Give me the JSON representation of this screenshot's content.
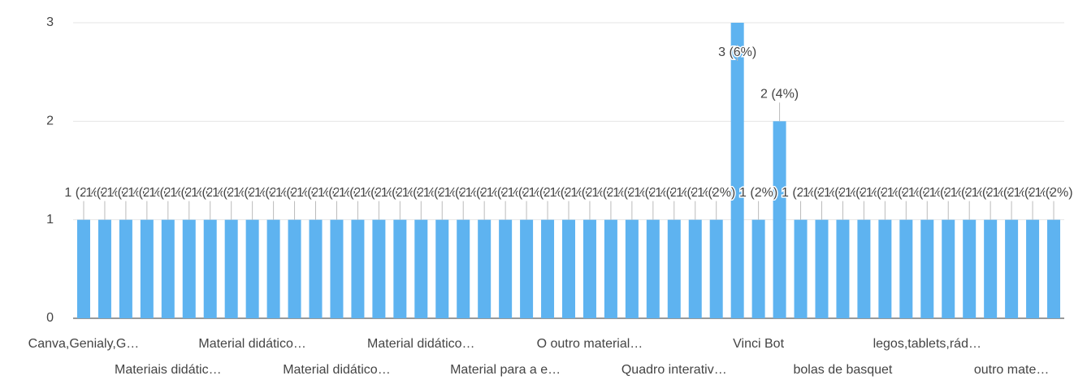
{
  "chart_data": {
    "type": "bar",
    "categories": [
      "Canva,Genialy,G…",
      null,
      null,
      null,
      "Materiais didátic…",
      null,
      null,
      null,
      "Material didático…",
      null,
      null,
      null,
      "Material didático…",
      null,
      null,
      null,
      "Material didático…",
      null,
      null,
      null,
      "Material para a e…",
      null,
      null,
      null,
      "O outro material…",
      null,
      null,
      null,
      "Quadro interativ…",
      null,
      null,
      null,
      "Vinci Bot",
      null,
      null,
      null,
      "bolas de basquet",
      null,
      null,
      null,
      "legos,tablets,rád…",
      null,
      null,
      null,
      "outro mate…",
      null,
      null
    ],
    "values": [
      1,
      1,
      1,
      1,
      1,
      1,
      1,
      1,
      1,
      1,
      1,
      1,
      1,
      1,
      1,
      1,
      1,
      1,
      1,
      1,
      1,
      1,
      1,
      1,
      1,
      1,
      1,
      1,
      1,
      1,
      1,
      3,
      1,
      2,
      1,
      1,
      1,
      1,
      1,
      1,
      1,
      1,
      1,
      1,
      1,
      1,
      1
    ],
    "value_labels": [
      "1 (2%)",
      "1 (2%)",
      "1 (2%)",
      "1 (2%)",
      "1 (2%)",
      "1 (2%)",
      "1 (2%)",
      "1 (2%)",
      "1 (2%)",
      "1 (2%)",
      "1 (2%)",
      "1 (2%)",
      "1 (2%)",
      "1 (2%)",
      "1 (2%)",
      "1 (2%)",
      "1 (2%)",
      "1 (2%)",
      "1 (2%)",
      "1 (2%)",
      "1 (2%)",
      "1 (2%)",
      "1 (2%)",
      "1 (2%)",
      "1 (2%)",
      "1 (2%)",
      "1 (2%)",
      "1 (2%)",
      "1 (2%)",
      "1 (2%)",
      "1 (2%)",
      "3 (6%)",
      "1 (2%)",
      "2 (4%)",
      "1 (2%)",
      "1 (2%)",
      "1 (2%)",
      "1 (2%)",
      "1 (2%)",
      "1 (2%)",
      "1 (2%)",
      "1 (2%)",
      "1 (2%)",
      "1 (2%)",
      "1 (2%)",
      "1 (2%)",
      "1 (2%)"
    ],
    "color": "#5eb3f0",
    "ylim": [
      0,
      3
    ],
    "yticks": [
      0,
      1,
      2,
      3
    ],
    "grid": true
  }
}
